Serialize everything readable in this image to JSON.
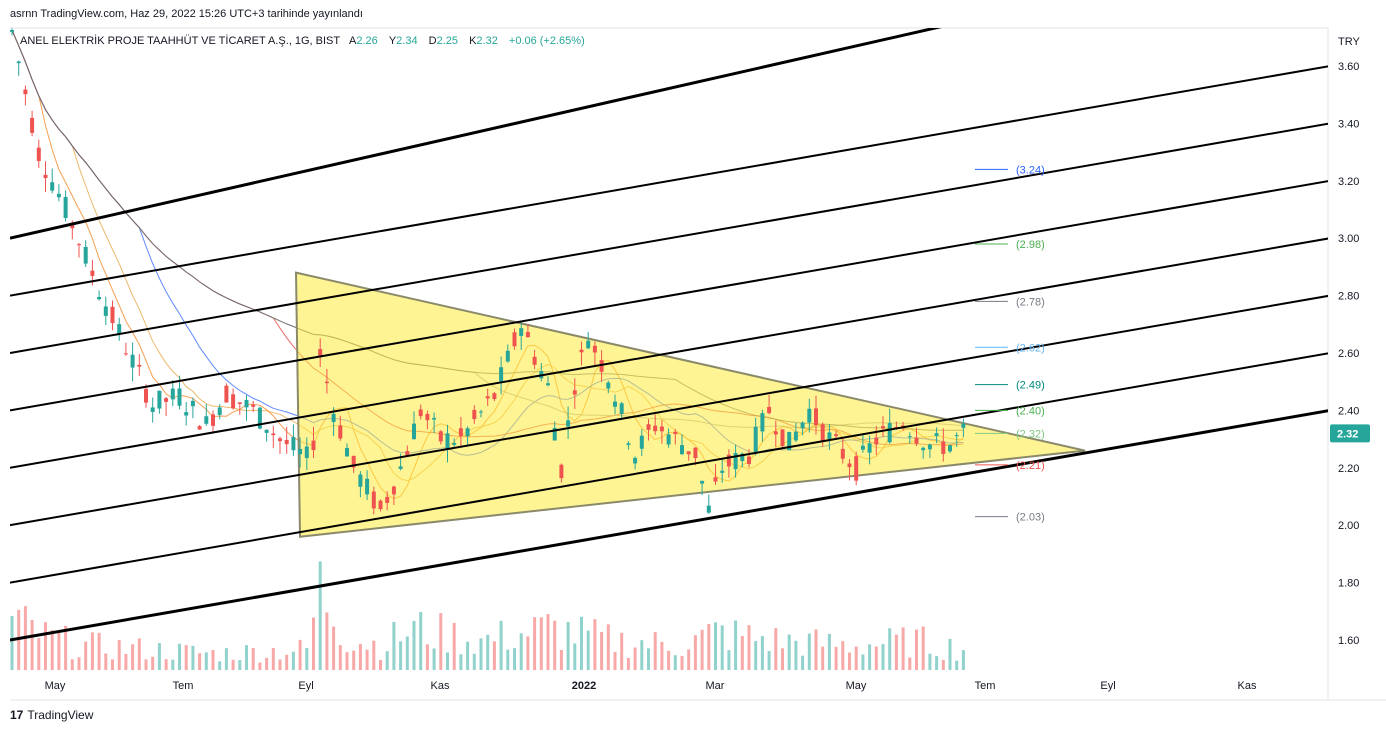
{
  "header": {
    "published": "asrnn TradingView.com, Haz 29, 2022 15:26 UTC+3 tarihinde yayınlandı",
    "symbol": "ANEL ELEKTRİK PROJE TAAHHÜT VE TİCARET A.Ş., 1G, BIST",
    "open_label": "A",
    "open": "2.26",
    "high_label": "Y",
    "high": "2.34",
    "low_label": "D",
    "low": "2.25",
    "close_label": "K",
    "close": "2.32",
    "change": "+0.06 (+2.65%)"
  },
  "footer": {
    "brand": "TradingView",
    "logo": "17"
  },
  "colors": {
    "up": "#26a69a",
    "down": "#ef5350",
    "triangle_fill": "#ffeb3b",
    "triangle_stroke": "#8a8a6a",
    "price_badge": "#26a69a"
  },
  "chart_data": {
    "type": "candlestick",
    "currency": "TRY",
    "ylim": [
      1.5,
      3.7
    ],
    "y_ticks": [
      "3.60",
      "3.40",
      "3.20",
      "3.00",
      "2.80",
      "2.60",
      "2.40",
      "2.20",
      "2.00",
      "1.80",
      "1.60"
    ],
    "x_ticks": [
      "May",
      "Tem",
      "Eyl",
      "Kas",
      "2022",
      "Mar",
      "May",
      "Tem",
      "Eyl",
      "Kas"
    ],
    "last_price": "2.32",
    "price_levels": [
      {
        "label": "(3.24)",
        "value": 3.24,
        "color": "#2962ff"
      },
      {
        "label": "(2.98)",
        "value": 2.98,
        "color": "#4caf50"
      },
      {
        "label": "(2.78)",
        "value": 2.78,
        "color": "#787b86"
      },
      {
        "label": "(2.62)",
        "value": 2.62,
        "color": "#64b5f6"
      },
      {
        "label": "(2.49)",
        "value": 2.49,
        "color": "#00897b"
      },
      {
        "label": "(2.40)",
        "value": 2.4,
        "color": "#4caf50"
      },
      {
        "label": "(2.32)",
        "value": 2.32,
        "color": "#81c784"
      },
      {
        "label": "(2.21)",
        "value": 2.21,
        "color": "#ef5350"
      },
      {
        "label": "(2.03)",
        "value": 2.03,
        "color": "#787b86"
      }
    ],
    "price_path": [
      [
        0,
        3.72
      ],
      [
        4,
        3.3
      ],
      [
        9,
        3.05
      ],
      [
        13,
        2.82
      ],
      [
        17,
        2.62
      ],
      [
        21,
        2.42
      ],
      [
        25,
        2.45
      ],
      [
        29,
        2.35
      ],
      [
        32,
        2.46
      ],
      [
        36,
        2.4
      ],
      [
        40,
        2.3
      ],
      [
        44,
        2.23
      ],
      [
        45,
        2.3
      ],
      [
        46,
        2.6
      ],
      [
        48,
        2.4
      ],
      [
        51,
        2.2
      ],
      [
        55,
        2.05
      ],
      [
        58,
        2.2
      ],
      [
        61,
        2.4
      ],
      [
        64,
        2.3
      ],
      [
        67,
        2.3
      ],
      [
        72,
        2.45
      ],
      [
        76,
        2.7
      ],
      [
        80,
        2.48
      ],
      [
        82,
        2.2
      ],
      [
        84,
        2.5
      ],
      [
        86,
        2.66
      ],
      [
        89,
        2.52
      ],
      [
        93,
        2.25
      ],
      [
        96,
        2.35
      ],
      [
        99,
        2.3
      ],
      [
        102,
        2.25
      ],
      [
        104,
        2.05
      ],
      [
        106,
        2.2
      ],
      [
        110,
        2.25
      ],
      [
        113,
        2.4
      ],
      [
        116,
        2.28
      ],
      [
        119,
        2.4
      ],
      [
        122,
        2.3
      ],
      [
        126,
        2.2
      ],
      [
        129,
        2.3
      ],
      [
        133,
        2.36
      ],
      [
        137,
        2.28
      ],
      [
        140,
        2.28
      ],
      [
        142,
        2.32
      ]
    ],
    "volume_path": [
      [
        0,
        0.6
      ],
      [
        5,
        0.4
      ],
      [
        10,
        0.3
      ],
      [
        20,
        0.25
      ],
      [
        30,
        0.2
      ],
      [
        44,
        0.25
      ],
      [
        46,
        1.0
      ],
      [
        50,
        0.4
      ],
      [
        55,
        0.3
      ],
      [
        60,
        0.5
      ],
      [
        70,
        0.35
      ],
      [
        80,
        0.5
      ],
      [
        90,
        0.35
      ],
      [
        100,
        0.3
      ],
      [
        105,
        0.45
      ],
      [
        115,
        0.35
      ],
      [
        125,
        0.3
      ],
      [
        135,
        0.35
      ],
      [
        142,
        0.25
      ]
    ],
    "trendlines": [
      {
        "x": [
          0,
          1210
        ],
        "y": [
          3.0,
          3.95
        ],
        "weight": 3
      },
      {
        "x": [
          0,
          1330
        ],
        "y": [
          2.8,
          3.6
        ],
        "weight": 2
      },
      {
        "x": [
          0,
          1330
        ],
        "y": [
          2.6,
          3.4
        ],
        "weight": 2
      },
      {
        "x": [
          0,
          1330
        ],
        "y": [
          2.4,
          3.2
        ],
        "weight": 2
      },
      {
        "x": [
          0,
          1330
        ],
        "y": [
          2.2,
          3.0
        ],
        "weight": 2
      },
      {
        "x": [
          0,
          1330
        ],
        "y": [
          2.0,
          2.8
        ],
        "weight": 2
      },
      {
        "x": [
          0,
          1330
        ],
        "y": [
          1.8,
          2.6
        ],
        "weight": 2
      },
      {
        "x": [
          0,
          1330
        ],
        "y": [
          1.6,
          2.4
        ],
        "weight": 3
      }
    ],
    "triangle": [
      [
        296,
        2.88
      ],
      [
        300,
        1.96
      ],
      [
        1085,
        2.26
      ]
    ]
  }
}
